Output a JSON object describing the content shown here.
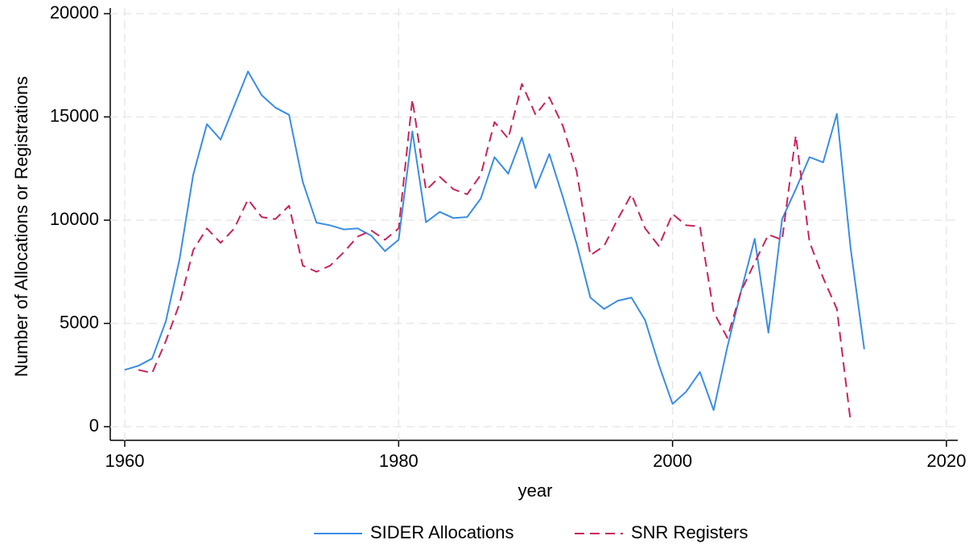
{
  "chart_data": {
    "type": "line",
    "x_label": "year",
    "y_label": "Number of Allocations or Registrations",
    "x": [
      1960,
      1961,
      1962,
      1963,
      1964,
      1965,
      1966,
      1967,
      1968,
      1969,
      1970,
      1971,
      1972,
      1973,
      1974,
      1975,
      1976,
      1977,
      1978,
      1979,
      1980,
      1981,
      1982,
      1983,
      1984,
      1985,
      1986,
      1987,
      1988,
      1989,
      1990,
      1991,
      1992,
      1993,
      1994,
      1995,
      1996,
      1997,
      1998,
      1999,
      2000,
      2001,
      2002,
      2003,
      2004,
      2005,
      2006,
      2007,
      2008,
      2009,
      2010,
      2011,
      2012,
      2013,
      2014
    ],
    "series": [
      {
        "name": "SIDER Allocations",
        "color": "#3a8de4",
        "dash": "solid",
        "values": [
          2750,
          2950,
          3300,
          5100,
          8100,
          12200,
          14650,
          13900,
          15550,
          17200,
          16050,
          15450,
          15100,
          11850,
          9880,
          9750,
          9550,
          9600,
          9250,
          8500,
          9050,
          14300,
          9900,
          10400,
          10100,
          10150,
          11050,
          13050,
          12250,
          14000,
          11550,
          13200,
          11100,
          8850,
          6250,
          5700,
          6100,
          6250,
          5150,
          3000,
          1100,
          1700,
          2650,
          800,
          3850,
          6550,
          9100,
          4550,
          10050,
          11500,
          13050,
          12800,
          15150,
          8650,
          3750
        ]
      },
      {
        "name": "SNR Registers",
        "color": "#c8245a",
        "dash": "dashed",
        "values": [
          null,
          2750,
          2600,
          4150,
          5950,
          8550,
          9600,
          8900,
          9600,
          11000,
          10150,
          10050,
          10700,
          7800,
          7500,
          7800,
          8450,
          9200,
          9500,
          9050,
          9600,
          15850,
          11450,
          12100,
          11500,
          11250,
          12200,
          14750,
          13950,
          16600,
          15100,
          15950,
          14550,
          12350,
          8300,
          8750,
          10050,
          11250,
          9600,
          8750,
          10300,
          9750,
          9700,
          5550,
          4300,
          6550,
          7950,
          9300,
          9050,
          14100,
          8950,
          7200,
          5700,
          250,
          null
        ]
      }
    ],
    "xlim": [
      1960,
      2020
    ],
    "xticks": [
      1960,
      1980,
      2000,
      2020
    ],
    "ylim": [
      0,
      20000
    ],
    "yticks": [
      0,
      5000,
      10000,
      15000,
      20000
    ],
    "grid": true,
    "legend": "bottom"
  }
}
